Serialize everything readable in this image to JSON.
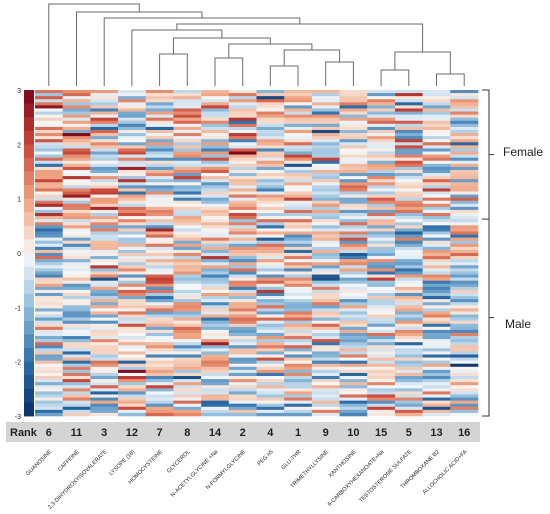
{
  "chart_data": {
    "type": "heatmap",
    "title": "",
    "color_scale": {
      "min": -3,
      "max": 3,
      "ticks": [
        "3",
        "2",
        "1",
        "0",
        "-1",
        "-2",
        "-3"
      ],
      "low_color": "#0b2f66",
      "mid_color": "#f7f7f7",
      "high_color": "#7a0418"
    },
    "columns": [
      "GUANOSINE",
      "CAFFEINE",
      "2,3-DIHYDROXYISOVALERATE",
      "LYSOPE (18)",
      "HOMOCYSTEINE",
      "GLYCEROL",
      "N-ACETYLGLYCINE +Na",
      "N-FORMYLGLYCINE",
      "PEG n5",
      "GLU-THR",
      "TRIMETHYLLYSINE",
      "XANTHOSINE",
      "6-CARBOXYHEXANOATE+Na",
      "TESTOSTERONE SULFATE",
      "THROMBOXANE B2",
      "ALLOCHOLIC ACID+FA"
    ],
    "rank_label": "Rank",
    "ranks": [
      "6",
      "11",
      "3",
      "12",
      "7",
      "8",
      "14",
      "2",
      "4",
      "1",
      "9",
      "10",
      "15",
      "5",
      "13",
      "16"
    ],
    "groups": [
      {
        "name": "Female",
        "rows": 42
      },
      {
        "name": "Male",
        "rows": 64
      }
    ],
    "dendrogram": "column clustering (hierarchical)"
  },
  "colors": {
    "rank_band": "#d4d4d4",
    "divider": "#333333"
  }
}
